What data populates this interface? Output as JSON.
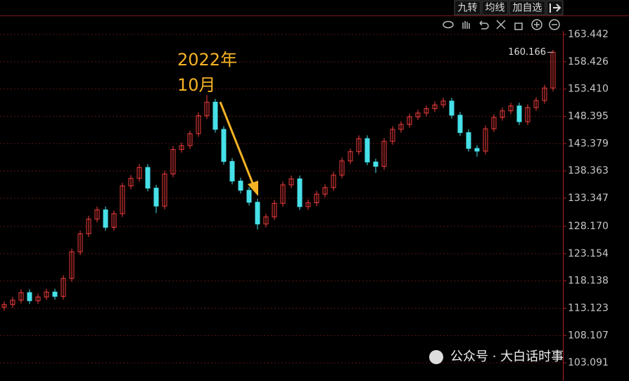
{
  "toolbar": [
    "九转",
    "均线",
    "加自选"
  ],
  "watermark": "公众号 · 大白话时事",
  "chart_data": {
    "type": "candlestick",
    "annotation": [
      "2022年",
      "10月"
    ],
    "last_price": 160.166,
    "up_color": "#f23c3c",
    "down_color": "#46e0e8",
    "ylim": [
      99.75,
      164.09
    ],
    "yticks": [
      163.442,
      158.426,
      {
        "value": 153.41,
        "label": "153.410"
      },
      148.395,
      143.379,
      138.363,
      133.347,
      {
        "value": 128.17,
        "label": "128.170"
      },
      123.154,
      118.138,
      113.123,
      108.107,
      103.091
    ],
    "grid": true,
    "open": [
      113.3,
      113.8,
      114.6,
      116.0,
      114.5,
      115.2,
      116.1,
      115.3,
      118.6,
      123.5,
      126.8,
      129.5,
      131.2,
      128.0,
      130.5,
      135.6,
      137.0,
      139.0,
      135.2,
      131.9,
      137.8,
      142.3,
      143.0,
      145.2,
      148.5,
      151.0,
      146.0,
      140.1,
      136.5,
      134.8,
      132.6,
      128.6,
      129.9,
      132.4,
      135.8,
      136.9,
      131.8,
      132.5,
      134.1,
      135.3,
      137.6,
      140.2,
      141.9,
      144.3,
      140.0,
      139.2,
      143.8,
      146.0,
      146.9,
      148.3,
      149.0,
      149.8,
      150.5,
      151.2,
      148.6,
      145.4,
      142.5,
      142.0,
      146.1,
      148.2,
      149.4,
      150.3,
      147.4,
      150.0,
      151.3,
      153.6
    ],
    "high": [
      114.4,
      115.2,
      116.6,
      116.6,
      115.8,
      116.7,
      116.7,
      119.2,
      124.1,
      127.4,
      130.1,
      131.8,
      131.8,
      131.1,
      136.2,
      137.6,
      139.6,
      139.6,
      135.8,
      138.4,
      142.9,
      143.6,
      145.8,
      149.1,
      152.3,
      151.6,
      146.6,
      140.7,
      137.1,
      135.4,
      133.2,
      130.5,
      133.0,
      136.4,
      137.5,
      137.5,
      133.1,
      134.7,
      135.9,
      138.2,
      140.8,
      142.5,
      144.9,
      144.9,
      140.6,
      144.4,
      146.6,
      147.5,
      148.9,
      149.6,
      150.4,
      151.1,
      151.8,
      151.8,
      149.2,
      146.0,
      143.1,
      146.7,
      148.8,
      150.0,
      150.9,
      150.9,
      150.6,
      151.9,
      154.2,
      160.6
    ],
    "low": [
      112.7,
      113.2,
      114.0,
      113.9,
      113.9,
      114.6,
      114.7,
      114.7,
      118.0,
      122.9,
      126.2,
      128.9,
      127.4,
      127.4,
      129.9,
      135.0,
      136.4,
      134.6,
      130.6,
      131.3,
      137.2,
      141.7,
      142.4,
      144.6,
      147.9,
      145.4,
      139.5,
      135.9,
      134.2,
      132.0,
      127.6,
      128.0,
      129.3,
      131.8,
      135.2,
      131.2,
      131.2,
      131.9,
      133.5,
      134.7,
      137.0,
      139.6,
      141.3,
      139.4,
      138.0,
      138.6,
      143.2,
      145.4,
      146.3,
      147.7,
      148.4,
      149.2,
      149.9,
      148.0,
      144.8,
      141.9,
      141.0,
      141.4,
      145.5,
      147.6,
      148.8,
      146.8,
      146.8,
      149.4,
      150.7,
      153.0
    ],
    "close": [
      113.8,
      114.6,
      116.0,
      114.5,
      115.2,
      116.1,
      115.3,
      118.6,
      123.5,
      126.8,
      129.5,
      131.2,
      128.0,
      130.5,
      135.6,
      137.0,
      139.0,
      135.2,
      131.9,
      137.8,
      142.3,
      143.0,
      145.2,
      148.5,
      151.0,
      146.0,
      140.1,
      136.5,
      134.8,
      132.6,
      128.6,
      129.9,
      132.4,
      135.8,
      136.9,
      131.8,
      132.5,
      134.1,
      135.3,
      137.6,
      140.2,
      141.9,
      144.3,
      140.0,
      139.2,
      143.8,
      146.0,
      146.9,
      148.3,
      149.0,
      149.8,
      150.5,
      151.2,
      148.6,
      145.4,
      142.5,
      142.0,
      146.1,
      148.2,
      149.4,
      150.3,
      147.4,
      150.0,
      151.3,
      153.6,
      160.166
    ]
  }
}
